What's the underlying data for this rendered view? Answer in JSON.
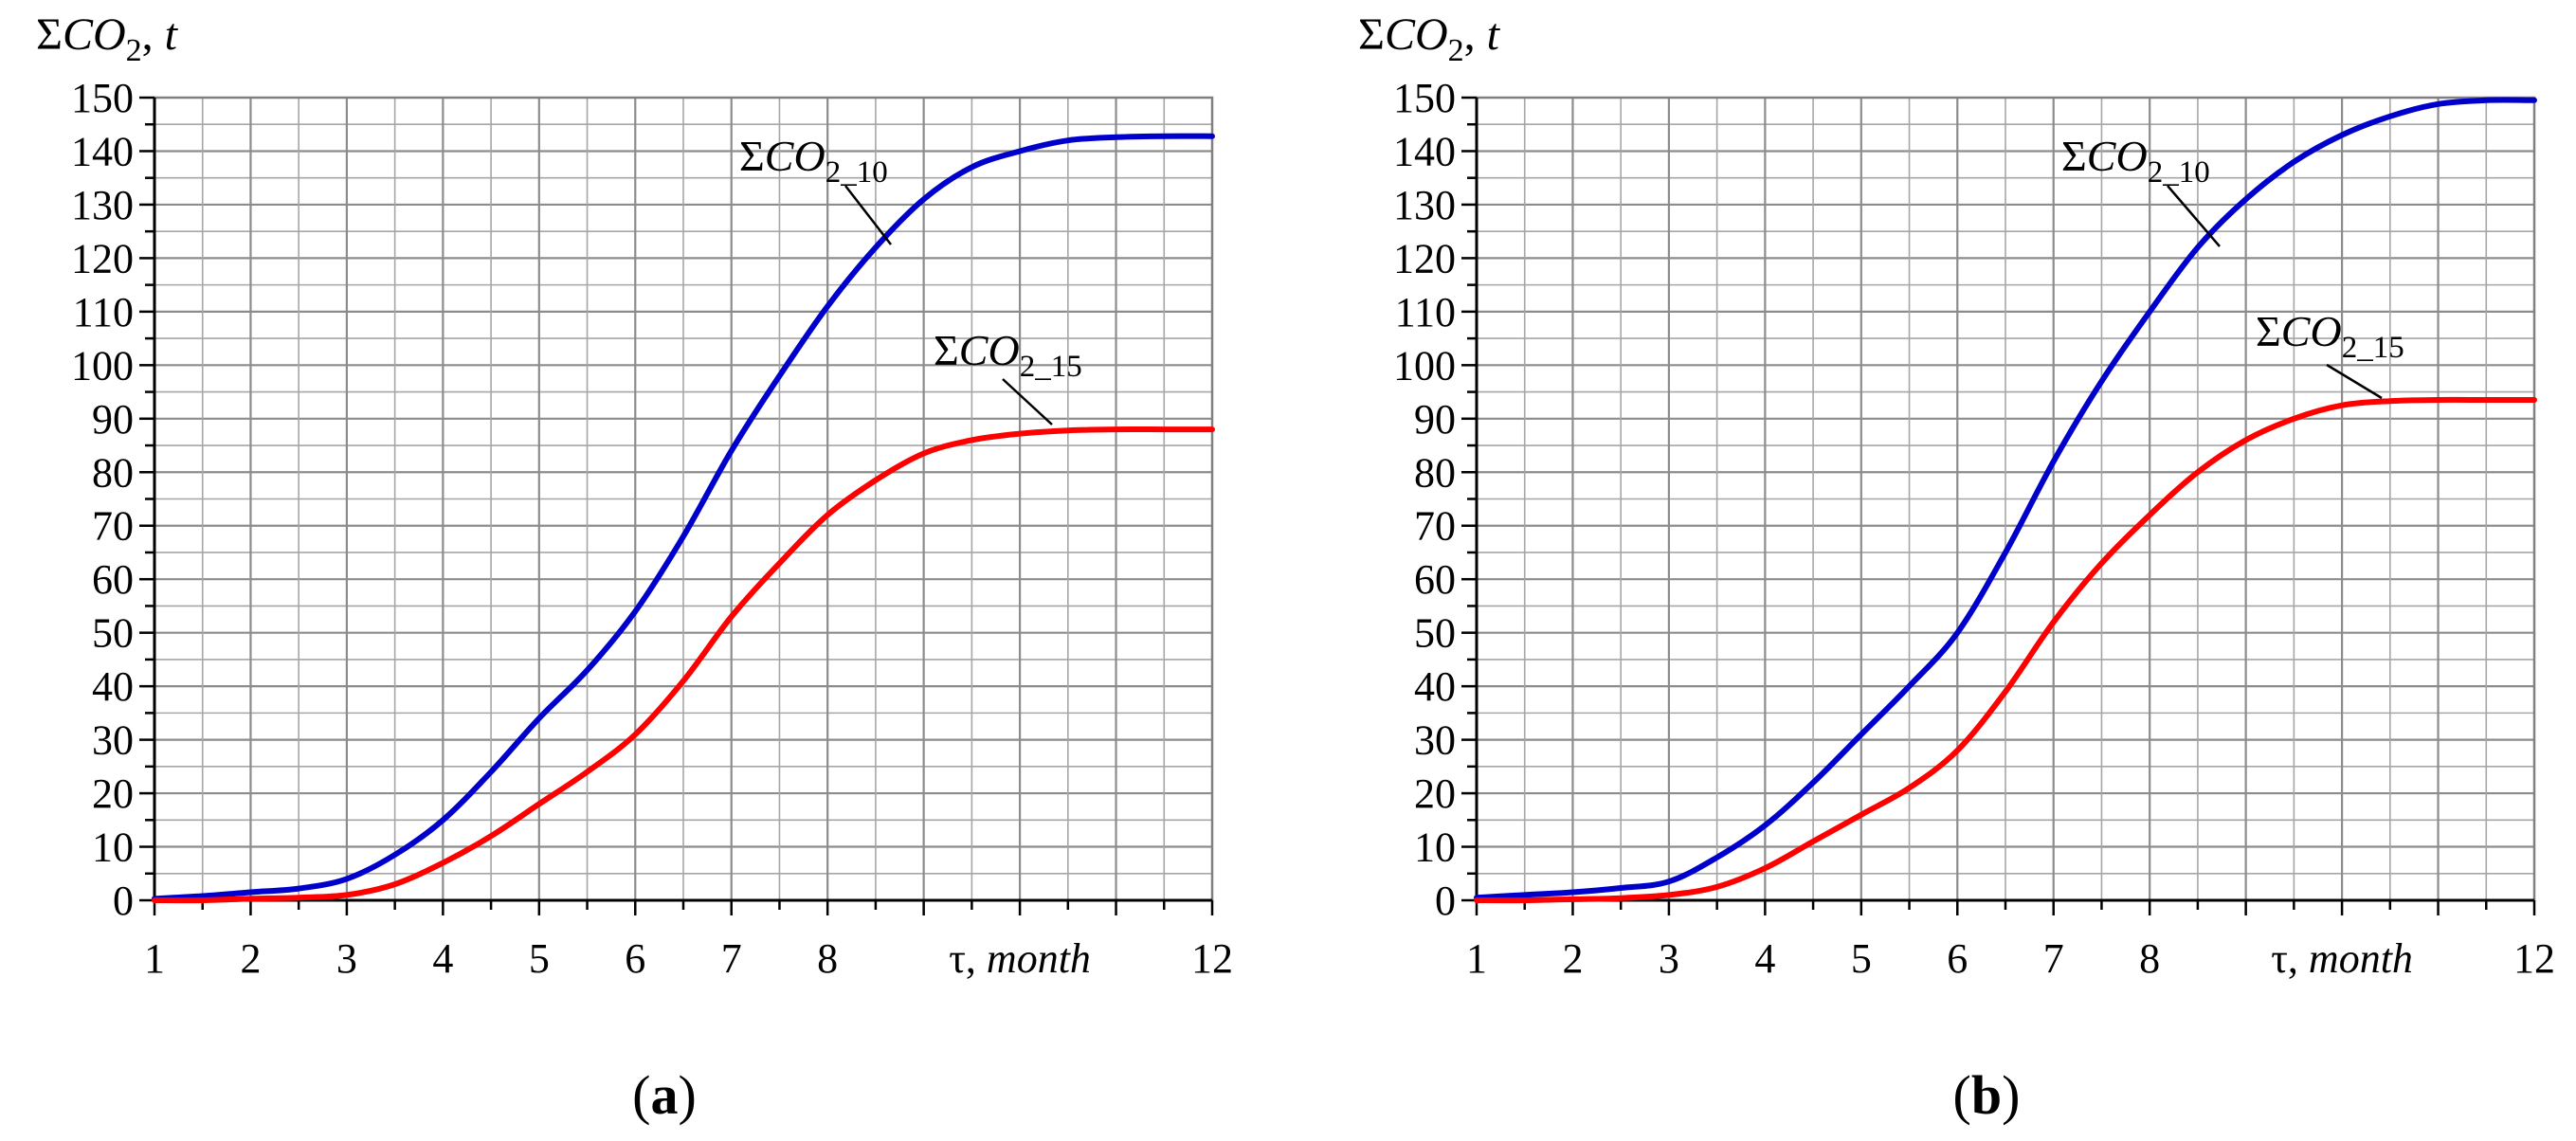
{
  "chart_data": [
    {
      "type": "line",
      "panel_label": "(a)",
      "panel_letter": "a",
      "ylabel": {
        "sigma": "Σ",
        "var": "CO",
        "sub": "2",
        "sep": ", ",
        "unit": "t"
      },
      "xlabel": {
        "sym": "τ",
        "sep": ", ",
        "unit": "month"
      },
      "x_ticks": [
        "1",
        "2",
        "3",
        "4",
        "5",
        "6",
        "7",
        "8",
        "12"
      ],
      "y_ticks": [
        "0",
        "10",
        "20",
        "30",
        "40",
        "50",
        "60",
        "70",
        "80",
        "90",
        "100",
        "110",
        "120",
        "130",
        "140",
        "150"
      ],
      "xlim": [
        1,
        12
      ],
      "ylim": [
        0,
        150
      ],
      "grid": true,
      "series": [
        {
          "name": "ΣCO2_10",
          "label": {
            "sigma": "Σ",
            "var": "CO",
            "sub": "2_10"
          },
          "color": "#0000cc",
          "x": [
            1,
            1.5,
            2,
            2.5,
            3,
            3.5,
            4,
            4.5,
            5,
            5.5,
            6,
            6.5,
            7,
            7.5,
            8,
            8.5,
            9,
            9.5,
            10,
            10.5,
            11,
            11.5,
            12
          ],
          "y": [
            0.3,
            0.8,
            1.5,
            2.2,
            4,
            8.5,
            15,
            24,
            34,
            43,
            54,
            68,
            84,
            98,
            111,
            122,
            131,
            137,
            140,
            142,
            142.6,
            142.8,
            142.8
          ]
        },
        {
          "name": "ΣCO2_15",
          "label": {
            "sigma": "Σ",
            "var": "CO",
            "sub": "2_15"
          },
          "color": "#ff0000",
          "x": [
            1,
            1.5,
            2,
            2.5,
            3,
            3.5,
            4,
            4.5,
            5,
            5.5,
            6,
            6.5,
            7,
            7.5,
            8,
            8.5,
            9,
            9.5,
            10,
            10.5,
            11,
            11.5,
            12
          ],
          "y": [
            0,
            0,
            0.3,
            0.5,
            1,
            3,
            7,
            12,
            18,
            24,
            31,
            41,
            53,
            63,
            72,
            78.5,
            83.5,
            86,
            87.2,
            87.8,
            88,
            88,
            88
          ]
        }
      ]
    },
    {
      "type": "line",
      "panel_label": "(b)",
      "panel_letter": "b",
      "ylabel": {
        "sigma": "Σ",
        "var": "CO",
        "sub": "2",
        "sep": ", ",
        "unit": "t"
      },
      "xlabel": {
        "sym": "τ",
        "sep": ", ",
        "unit": "month"
      },
      "x_ticks": [
        "1",
        "2",
        "3",
        "4",
        "5",
        "6",
        "7",
        "8",
        "12"
      ],
      "y_ticks": [
        "0",
        "10",
        "20",
        "30",
        "40",
        "50",
        "60",
        "70",
        "80",
        "90",
        "100",
        "110",
        "120",
        "130",
        "140",
        "150"
      ],
      "xlim": [
        1,
        12
      ],
      "ylim": [
        0,
        150
      ],
      "grid": true,
      "series": [
        {
          "name": "ΣCO2_10",
          "label": {
            "sigma": "Σ",
            "var": "CO",
            "sub": "2_10"
          },
          "color": "#0000cc",
          "x": [
            1,
            1.5,
            2,
            2.5,
            3,
            3.5,
            4,
            4.5,
            5,
            5.5,
            6,
            6.5,
            7,
            7.5,
            8,
            8.5,
            9,
            9.5,
            10,
            10.5,
            11,
            11.5,
            12
          ],
          "y": [
            0.5,
            1,
            1.5,
            2.3,
            3.5,
            8,
            14,
            22,
            31,
            40,
            50,
            65,
            82,
            97,
            110,
            122,
            131,
            138,
            143,
            146.5,
            148.8,
            149.5,
            149.5
          ]
        },
        {
          "name": "ΣCO2_15",
          "label": {
            "sigma": "Σ",
            "var": "CO",
            "sub": "2_15"
          },
          "color": "#ff0000",
          "x": [
            1,
            1.5,
            2,
            2.5,
            3,
            3.5,
            4,
            4.5,
            5,
            5.5,
            6,
            6.5,
            7,
            7.5,
            8,
            8.5,
            9,
            9.5,
            10,
            10.5,
            11,
            11.5,
            12
          ],
          "y": [
            0,
            0,
            0.2,
            0.4,
            1,
            2.5,
            6,
            11,
            16,
            21,
            28,
            39,
            52,
            63,
            72,
            80,
            86,
            90,
            92.5,
            93.3,
            93.5,
            93.5,
            93.5
          ]
        }
      ]
    }
  ]
}
